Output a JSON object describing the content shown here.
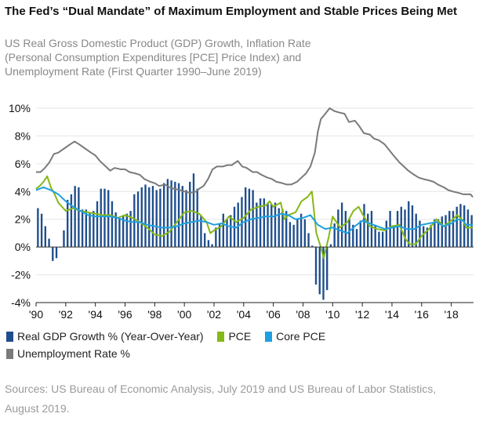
{
  "title": "The Fed’s “Dual Mandate” of Maximum Employment and Stable Prices Being Met",
  "subtitle_lines": [
    "US Real Gross Domestic Product (GDP) Growth, Inflation Rate",
    "(Personal Consumption Expenditures [PCE] Price Index) and",
    "Unemployment Rate (First Quarter 1990–June 2019)"
  ],
  "source_text": "Sources: US Bureau of Economic Analysis, July 2019 and US Bureau of Labor Statistics, August 2019.",
  "colors": {
    "gdp": "#1f4e8c",
    "pce": "#86b817",
    "core_pce": "#1ea0e0",
    "unemployment": "#7a7a7a"
  },
  "chart_data": {
    "type": "bar-line",
    "x_range": [
      1990,
      2019.5
    ],
    "ylim": [
      -4,
      10
    ],
    "y_ticks": [
      -4,
      -2,
      0,
      2,
      4,
      6,
      8,
      10
    ],
    "y_tick_labels": [
      "-4%",
      "-2%",
      "0%",
      "2%",
      "4%",
      "6%",
      "8%",
      "10%"
    ],
    "x_ticks": [
      1990,
      1992,
      1994,
      1996,
      1998,
      2000,
      2002,
      2004,
      2006,
      2008,
      2010,
      2012,
      2014,
      2016,
      2018
    ],
    "x_tick_labels": [
      "'90",
      "'92",
      "'94",
      "'96",
      "'98",
      "'00",
      "'02",
      "'04",
      "'06",
      "'08",
      "'10",
      "'12",
      "'14",
      "'16",
      "'18"
    ],
    "legend": [
      {
        "key": "gdp",
        "label": "Real GDP Growth % (Year-Over-Year)"
      },
      {
        "key": "pce",
        "label": "PCE"
      },
      {
        "key": "core_pce",
        "label": "Core PCE"
      },
      {
        "key": "unemployment",
        "label": "Unemployment Rate %"
      }
    ],
    "series": [
      {
        "name": "Real GDP Growth % (Year-Over-Year)",
        "kind": "bar",
        "start_year": 1990,
        "step": 0.25,
        "values": [
          2.8,
          2.4,
          1.5,
          0.6,
          -1.0,
          -0.8,
          0.0,
          1.2,
          3.4,
          3.8,
          4.4,
          4.3,
          2.7,
          2.7,
          2.5,
          2.6,
          3.3,
          4.2,
          4.2,
          4.1,
          3.3,
          2.5,
          2.1,
          2.3,
          2.4,
          2.6,
          3.8,
          4.0,
          4.3,
          4.5,
          4.3,
          4.4,
          4.1,
          4.2,
          4.6,
          4.9,
          4.8,
          4.7,
          4.6,
          4.4,
          4.1,
          4.7,
          5.3,
          4.2,
          2.3,
          1.0,
          0.5,
          0.2,
          1.4,
          1.7,
          2.4,
          2.0,
          2.3,
          2.9,
          3.2,
          3.6,
          4.3,
          4.2,
          4.1,
          3.2,
          3.5,
          3.5,
          3.2,
          3.1,
          3.2,
          2.8,
          2.7,
          2.6,
          1.8,
          1.6,
          2.0,
          2.4,
          2.0,
          1.0,
          0.1,
          -2.7,
          -3.4,
          -3.8,
          -3.1,
          0.2,
          1.7,
          2.7,
          3.2,
          2.6,
          2.0,
          1.6,
          1.3,
          1.9,
          3.1,
          2.4,
          2.6,
          1.6,
          1.1,
          1.1,
          1.9,
          2.6,
          1.5,
          2.6,
          2.9,
          2.7,
          3.3,
          3.0,
          2.4,
          1.9,
          1.5,
          1.4,
          1.6,
          2.0,
          2.0,
          2.2,
          2.3,
          2.6,
          2.6,
          2.9,
          3.1,
          3.0,
          2.7,
          2.3
        ]
      },
      {
        "name": "PCE",
        "kind": "line",
        "points": [
          [
            1990.0,
            4.2
          ],
          [
            1990.25,
            4.4
          ],
          [
            1990.5,
            4.7
          ],
          [
            1990.75,
            5.1
          ],
          [
            1991.0,
            4.3
          ],
          [
            1991.25,
            3.8
          ],
          [
            1991.5,
            3.2
          ],
          [
            1991.75,
            2.9
          ],
          [
            1992.0,
            2.6
          ],
          [
            1992.5,
            2.8
          ],
          [
            1993.0,
            2.6
          ],
          [
            1993.5,
            2.5
          ],
          [
            1994.0,
            2.4
          ],
          [
            1994.5,
            2.3
          ],
          [
            1995.0,
            2.3
          ],
          [
            1995.5,
            2.1
          ],
          [
            1996.0,
            2.3
          ],
          [
            1996.5,
            2.1
          ],
          [
            1997.0,
            1.8
          ],
          [
            1997.5,
            1.4
          ],
          [
            1998.0,
            0.9
          ],
          [
            1998.5,
            0.8
          ],
          [
            1999.0,
            1.1
          ],
          [
            1999.5,
            1.8
          ],
          [
            2000.0,
            2.5
          ],
          [
            2000.5,
            2.6
          ],
          [
            2001.0,
            2.4
          ],
          [
            2001.5,
            1.8
          ],
          [
            2001.75,
            1.0
          ],
          [
            2002.0,
            1.2
          ],
          [
            2002.5,
            1.5
          ],
          [
            2003.0,
            2.2
          ],
          [
            2003.5,
            1.8
          ],
          [
            2004.0,
            2.1
          ],
          [
            2004.5,
            2.7
          ],
          [
            2005.0,
            2.9
          ],
          [
            2005.5,
            3.0
          ],
          [
            2005.75,
            3.3
          ],
          [
            2006.0,
            2.9
          ],
          [
            2006.5,
            3.2
          ],
          [
            2006.75,
            2.0
          ],
          [
            2007.0,
            2.3
          ],
          [
            2007.5,
            2.5
          ],
          [
            2007.9,
            3.3
          ],
          [
            2008.3,
            3.6
          ],
          [
            2008.6,
            4.0
          ],
          [
            2008.9,
            1.0
          ],
          [
            2009.2,
            0.0
          ],
          [
            2009.4,
            -0.8
          ],
          [
            2009.75,
            0.8
          ],
          [
            2010.0,
            2.2
          ],
          [
            2010.5,
            1.4
          ],
          [
            2011.0,
            1.8
          ],
          [
            2011.4,
            2.6
          ],
          [
            2011.75,
            2.9
          ],
          [
            2012.0,
            2.4
          ],
          [
            2012.5,
            1.5
          ],
          [
            2013.0,
            1.3
          ],
          [
            2013.5,
            1.2
          ],
          [
            2014.0,
            1.5
          ],
          [
            2014.5,
            1.6
          ],
          [
            2014.9,
            0.6
          ],
          [
            2015.2,
            0.2
          ],
          [
            2015.6,
            0.2
          ],
          [
            2016.0,
            0.8
          ],
          [
            2016.5,
            1.3
          ],
          [
            2017.0,
            2.0
          ],
          [
            2017.5,
            1.5
          ],
          [
            2018.0,
            1.9
          ],
          [
            2018.4,
            2.3
          ],
          [
            2018.8,
            1.9
          ],
          [
            2019.0,
            1.4
          ],
          [
            2019.45,
            1.4
          ]
        ]
      },
      {
        "name": "Core PCE",
        "kind": "line",
        "points": [
          [
            1990.0,
            4.1
          ],
          [
            1990.5,
            4.3
          ],
          [
            1991.0,
            4.1
          ],
          [
            1991.5,
            3.8
          ],
          [
            1992.0,
            3.3
          ],
          [
            1992.5,
            2.9
          ],
          [
            1993.0,
            2.6
          ],
          [
            1993.5,
            2.3
          ],
          [
            1994.0,
            2.2
          ],
          [
            1994.5,
            2.2
          ],
          [
            1995.0,
            2.2
          ],
          [
            1995.5,
            2.1
          ],
          [
            1996.0,
            1.9
          ],
          [
            1996.5,
            1.8
          ],
          [
            1997.0,
            1.8
          ],
          [
            1997.5,
            1.6
          ],
          [
            1998.0,
            1.5
          ],
          [
            1998.5,
            1.4
          ],
          [
            1999.0,
            1.4
          ],
          [
            1999.5,
            1.5
          ],
          [
            2000.0,
            1.7
          ],
          [
            2000.5,
            1.8
          ],
          [
            2001.0,
            1.9
          ],
          [
            2001.5,
            1.8
          ],
          [
            2002.0,
            1.6
          ],
          [
            2002.5,
            1.7
          ],
          [
            2003.0,
            1.5
          ],
          [
            2003.5,
            1.4
          ],
          [
            2004.0,
            1.8
          ],
          [
            2004.5,
            2.0
          ],
          [
            2005.0,
            2.1
          ],
          [
            2005.5,
            2.2
          ],
          [
            2006.0,
            2.2
          ],
          [
            2006.5,
            2.4
          ],
          [
            2007.0,
            2.3
          ],
          [
            2007.5,
            2.0
          ],
          [
            2008.0,
            2.1
          ],
          [
            2008.5,
            2.3
          ],
          [
            2009.0,
            1.6
          ],
          [
            2009.5,
            1.3
          ],
          [
            2010.0,
            1.4
          ],
          [
            2010.5,
            1.2
          ],
          [
            2011.0,
            1.0
          ],
          [
            2011.5,
            1.5
          ],
          [
            2012.0,
            1.9
          ],
          [
            2012.5,
            1.7
          ],
          [
            2013.0,
            1.5
          ],
          [
            2013.5,
            1.3
          ],
          [
            2014.0,
            1.4
          ],
          [
            2014.5,
            1.5
          ],
          [
            2015.0,
            1.3
          ],
          [
            2015.5,
            1.3
          ],
          [
            2016.0,
            1.6
          ],
          [
            2016.5,
            1.7
          ],
          [
            2017.0,
            1.8
          ],
          [
            2017.5,
            1.5
          ],
          [
            2018.0,
            1.7
          ],
          [
            2018.4,
            2.0
          ],
          [
            2018.8,
            1.9
          ],
          [
            2019.0,
            1.6
          ],
          [
            2019.45,
            1.6
          ]
        ]
      },
      {
        "name": "Unemployment Rate %",
        "kind": "line",
        "points": [
          [
            1990.0,
            5.4
          ],
          [
            1990.3,
            5.4
          ],
          [
            1990.6,
            5.7
          ],
          [
            1990.9,
            6.1
          ],
          [
            1991.2,
            6.7
          ],
          [
            1991.5,
            6.8
          ],
          [
            1991.9,
            7.1
          ],
          [
            1992.3,
            7.4
          ],
          [
            1992.6,
            7.6
          ],
          [
            1992.9,
            7.4
          ],
          [
            1993.3,
            7.1
          ],
          [
            1993.7,
            6.8
          ],
          [
            1994.0,
            6.6
          ],
          [
            1994.3,
            6.2
          ],
          [
            1994.7,
            5.8
          ],
          [
            1995.0,
            5.5
          ],
          [
            1995.3,
            5.7
          ],
          [
            1995.7,
            5.6
          ],
          [
            1996.0,
            5.6
          ],
          [
            1996.3,
            5.4
          ],
          [
            1996.7,
            5.3
          ],
          [
            1997.0,
            5.2
          ],
          [
            1997.3,
            4.9
          ],
          [
            1997.7,
            4.7
          ],
          [
            1998.0,
            4.6
          ],
          [
            1998.3,
            4.4
          ],
          [
            1998.7,
            4.5
          ],
          [
            1999.0,
            4.3
          ],
          [
            1999.3,
            4.2
          ],
          [
            1999.7,
            4.1
          ],
          [
            2000.0,
            4.0
          ],
          [
            2000.4,
            3.9
          ],
          [
            2000.8,
            4.0
          ],
          [
            2001.0,
            4.2
          ],
          [
            2001.3,
            4.4
          ],
          [
            2001.6,
            4.9
          ],
          [
            2001.9,
            5.6
          ],
          [
            2002.2,
            5.8
          ],
          [
            2002.6,
            5.8
          ],
          [
            2002.9,
            5.9
          ],
          [
            2003.2,
            5.9
          ],
          [
            2003.6,
            6.2
          ],
          [
            2003.9,
            5.8
          ],
          [
            2004.2,
            5.7
          ],
          [
            2004.6,
            5.4
          ],
          [
            2004.9,
            5.4
          ],
          [
            2005.2,
            5.2
          ],
          [
            2005.6,
            5.0
          ],
          [
            2005.9,
            4.9
          ],
          [
            2006.2,
            4.7
          ],
          [
            2006.6,
            4.6
          ],
          [
            2006.9,
            4.5
          ],
          [
            2007.2,
            4.5
          ],
          [
            2007.6,
            4.7
          ],
          [
            2007.9,
            5.0
          ],
          [
            2008.2,
            5.3
          ],
          [
            2008.5,
            5.8
          ],
          [
            2008.8,
            6.8
          ],
          [
            2009.0,
            8.3
          ],
          [
            2009.2,
            9.2
          ],
          [
            2009.5,
            9.6
          ],
          [
            2009.8,
            10.0
          ],
          [
            2010.1,
            9.8
          ],
          [
            2010.4,
            9.7
          ],
          [
            2010.8,
            9.6
          ],
          [
            2011.1,
            9.0
          ],
          [
            2011.5,
            9.1
          ],
          [
            2011.8,
            8.7
          ],
          [
            2012.1,
            8.2
          ],
          [
            2012.5,
            8.1
          ],
          [
            2012.8,
            7.8
          ],
          [
            2013.1,
            7.7
          ],
          [
            2013.5,
            7.4
          ],
          [
            2013.8,
            7.0
          ],
          [
            2014.1,
            6.6
          ],
          [
            2014.5,
            6.1
          ],
          [
            2014.8,
            5.8
          ],
          [
            2015.1,
            5.5
          ],
          [
            2015.5,
            5.2
          ],
          [
            2015.8,
            5.0
          ],
          [
            2016.1,
            4.9
          ],
          [
            2016.5,
            4.8
          ],
          [
            2016.8,
            4.7
          ],
          [
            2017.1,
            4.5
          ],
          [
            2017.5,
            4.3
          ],
          [
            2017.8,
            4.1
          ],
          [
            2018.1,
            4.0
          ],
          [
            2018.5,
            3.9
          ],
          [
            2018.8,
            3.8
          ],
          [
            2019.1,
            3.8
          ],
          [
            2019.3,
            3.8
          ],
          [
            2019.45,
            3.6
          ]
        ]
      }
    ]
  }
}
